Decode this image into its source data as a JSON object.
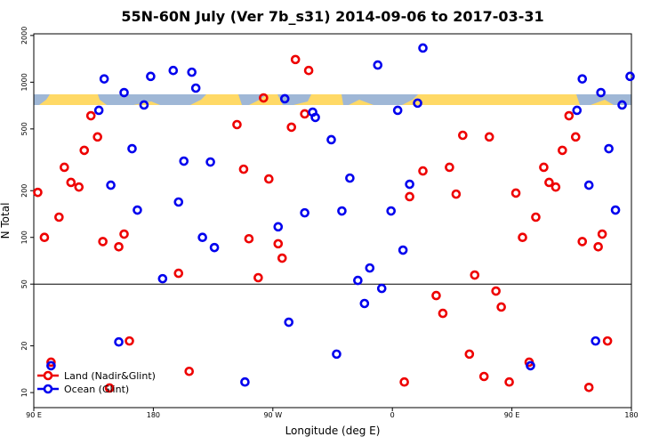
{
  "chart_data": {
    "type": "scatter",
    "title": "55N-60N July (Ver 7b_s31)   2014-09-06 to 2017-03-31",
    "x_label": "Longitude (deg E)",
    "y_label": "N Total",
    "xlim": [
      90,
      540
    ],
    "ylim": [
      8,
      2050
    ],
    "log_y": true,
    "legend": "bottomleft",
    "reference_line": 50,
    "xticks": [
      {
        "value": 90,
        "label": "90 E"
      },
      180,
      {
        "value": 270,
        "label": "90 W"
      },
      {
        "value": 360,
        "label": "0"
      },
      {
        "value": 450,
        "label": "90 E"
      },
      {
        "value": 540,
        "label": "180"
      }
    ],
    "yticks": [
      10,
      20,
      50,
      100,
      200,
      500,
      1000,
      2000
    ],
    "series": [
      {
        "name": "Land (Nadir&Glint)",
        "color": "#ee0000",
        "x": [
          93,
          98,
          103,
          109,
          113,
          118,
          124,
          128,
          133,
          138,
          142,
          147,
          154,
          158,
          162,
          199,
          207,
          243,
          248,
          252,
          259,
          263,
          267,
          274,
          277,
          284,
          287,
          294,
          297,
          369,
          373,
          383,
          393,
          398,
          403,
          408,
          413,
          418,
          422,
          429,
          433,
          438,
          442,
          448,
          453,
          458,
          463,
          468,
          474,
          478,
          483,
          488,
          493,
          498,
          503,
          508,
          515,
          518,
          522
        ],
        "values": [
          195,
          100,
          15.7,
          135,
          283,
          226,
          211,
          364,
          608,
          444,
          94,
          10.7,
          87,
          105,
          21.5,
          58.7,
          13.7,
          533,
          275,
          98,
          55,
          792,
          238,
          91,
          73.5,
          513,
          1400,
          625,
          1190,
          11.7,
          183,
          268,
          42.2,
          32.4,
          283,
          190,
          455,
          17.7,
          57.2,
          12.7,
          444,
          45.1,
          35.6,
          11.7,
          193,
          100,
          15.7,
          135,
          283,
          226,
          211,
          364,
          608,
          444,
          94,
          10.8,
          87,
          105,
          21.5
        ]
      },
      {
        "name": "Ocean (Glint)",
        "color": "#0000ee",
        "x": [
          103,
          139,
          143,
          148,
          154,
          158,
          164,
          168,
          173,
          178,
          187,
          195,
          199,
          203,
          209,
          212,
          217,
          223,
          226,
          249,
          274,
          279,
          282,
          294,
          300,
          302,
          314,
          318,
          322,
          328,
          334,
          339,
          343,
          349,
          352,
          359,
          364,
          368,
          373,
          379,
          383,
          464,
          499,
          503,
          508,
          513,
          517,
          523,
          528,
          533,
          539
        ],
        "values": [
          14.9,
          659,
          1050,
          217,
          21.2,
          857,
          373,
          150,
          713,
          1090,
          54.2,
          1190,
          169,
          310,
          1160,
          916,
          100,
          306,
          86,
          11.7,
          117,
          782,
          28.4,
          144,
          641,
          593,
          426,
          17.7,
          148,
          241,
          52.8,
          37.5,
          63.5,
          1290,
          46.9,
          148,
          659,
          82.8,
          220,
          733,
          1660,
          14.9,
          659,
          1050,
          217,
          21.5,
          857,
          373,
          150,
          713,
          1090
        ]
      }
    ]
  }
}
